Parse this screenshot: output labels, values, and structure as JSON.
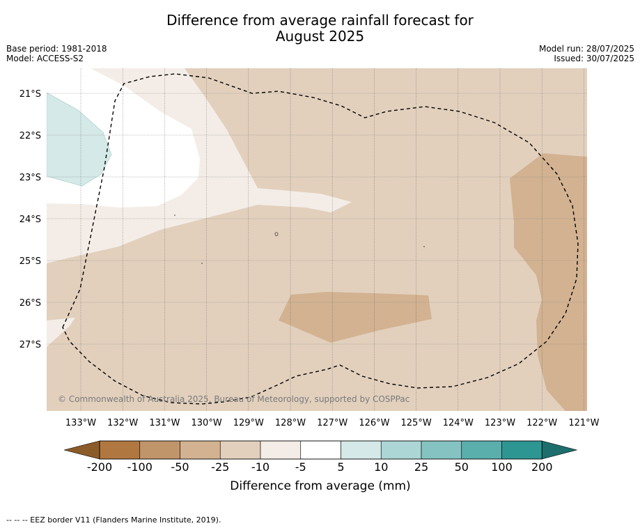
{
  "title": "Difference from average rainfall forecast for\nAugust 2025",
  "meta_left": [
    "Base period: 1981-2018",
    "Model: ACCESS-S2"
  ],
  "meta_right": [
    "Model run: 28/07/2025",
    "Issued: 30/07/2025"
  ],
  "map": {
    "lat_labels": [
      "21°S",
      "22°S",
      "23°S",
      "24°S",
      "25°S",
      "26°S",
      "27°S"
    ],
    "lon_labels": [
      "133°W",
      "132°W",
      "131°W",
      "130°W",
      "129°W",
      "128°W",
      "127°W",
      "126°W",
      "125°W",
      "124°W",
      "123°W",
      "122°W",
      "121°W"
    ],
    "copyright": "© Commonwealth of Australia 2025, Bureau of Meteorology, supported by COSPPac",
    "eez_line_style": "dashed"
  },
  "colorbar": {
    "labels": [
      "-200",
      "-100",
      "-50",
      "-25",
      "-10",
      "-5",
      "5",
      "10",
      "25",
      "50",
      "100",
      "200"
    ],
    "colors": [
      "#8c5b2a",
      "#b07840",
      "#c1956a",
      "#d2b291",
      "#e2d0bd",
      "#f4ede7",
      "#ffffff",
      "#d4e9e8",
      "#acd6d5",
      "#84c3c1",
      "#5aaeac",
      "#2e9692",
      "#1d6e6c"
    ],
    "title": "Difference from average (mm)"
  },
  "footer": "--  --  -- EEZ border V11 (Flanders Marine Institute, 2019)."
}
